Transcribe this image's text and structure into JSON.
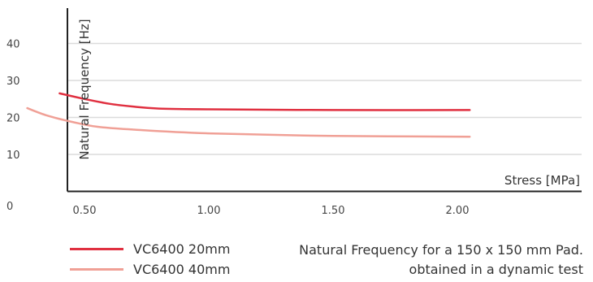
{
  "chart_data": {
    "type": "line",
    "title": "",
    "ylabel": "Natural Frequency [Hz]",
    "xlabel": "Stress [MPa]",
    "xlim": [
      0,
      2.05
    ],
    "ylim": [
      0,
      48
    ],
    "x_ticks": [
      "0.50",
      "1.00",
      "1.50",
      "2.00"
    ],
    "x_tick_values": [
      0.5,
      1.0,
      1.5,
      2.0
    ],
    "y_ticks": [
      "0",
      "10",
      "20",
      "30",
      "40"
    ],
    "y_tick_values": [
      0,
      10,
      20,
      30,
      40
    ],
    "grid": true,
    "series": [
      {
        "name": "VC6400 20mm",
        "color": "#e03040",
        "points": [
          [
            0.4,
            26.5
          ],
          [
            0.5,
            25.0
          ],
          [
            0.6,
            23.7
          ],
          [
            0.7,
            22.9
          ],
          [
            0.8,
            22.4
          ],
          [
            1.0,
            22.2
          ],
          [
            1.5,
            22.0
          ],
          [
            2.05,
            22.0
          ]
        ]
      },
      {
        "name": "VC6400 40mm",
        "color": "#f0a096",
        "points": [
          [
            0.27,
            22.5
          ],
          [
            0.35,
            20.5
          ],
          [
            0.45,
            18.8
          ],
          [
            0.55,
            17.5
          ],
          [
            0.7,
            16.7
          ],
          [
            1.0,
            15.7
          ],
          [
            1.5,
            15.0
          ],
          [
            2.05,
            14.8
          ]
        ]
      }
    ],
    "legend_position": "bottom-left"
  },
  "note": {
    "line1": "Natural Frequency for a 150 x 150 mm Pad.",
    "line2": "obtained in a dynamic test"
  }
}
